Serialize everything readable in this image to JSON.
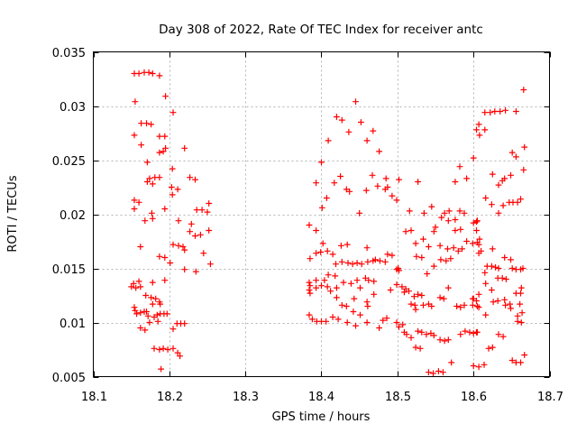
{
  "chart": {
    "background_color": "#ffffff",
    "border_color": "#000000",
    "grid_color": "#b4b4b4",
    "text_color": "#000000"
  },
  "chart_data": {
    "type": "scatter",
    "title": "Day 308 of 2022, Rate Of TEC Index for receiver antc",
    "xlabel": "GPS time / hours",
    "ylabel": "ROTI / TECUs",
    "xlim": [
      18.1,
      18.7
    ],
    "ylim": [
      0.005,
      0.035
    ],
    "x_ticks": [
      18.1,
      18.2,
      18.3,
      18.4,
      18.5,
      18.6,
      18.7
    ],
    "x_tick_labels": [
      "18.1",
      "18.2",
      "18.3",
      "18.4",
      "18.5",
      "18.6",
      "18.7"
    ],
    "y_ticks": [
      0.005,
      0.01,
      0.015,
      0.02,
      0.025,
      0.03,
      0.035
    ],
    "y_tick_labels": [
      "0.005",
      "0.01",
      "0.015",
      "0.02",
      "0.025",
      "0.03",
      "0.035"
    ],
    "grid": true,
    "legend": null,
    "marker": "plus",
    "marker_color": "#ff0000",
    "series_name": "ROTI",
    "points": [
      [
        18.154,
        0.033
      ],
      [
        18.16,
        0.033
      ],
      [
        18.167,
        0.0331
      ],
      [
        18.173,
        0.0331
      ],
      [
        18.178,
        0.033
      ],
      [
        18.187,
        0.0328
      ],
      [
        18.195,
        0.0309
      ],
      [
        18.155,
        0.0304
      ],
      [
        18.205,
        0.0294
      ],
      [
        18.163,
        0.0284
      ],
      [
        18.17,
        0.0284
      ],
      [
        18.176,
        0.0283
      ],
      [
        18.154,
        0.0273
      ],
      [
        18.187,
        0.0272
      ],
      [
        18.194,
        0.0272
      ],
      [
        18.163,
        0.0264
      ],
      [
        18.195,
        0.0261
      ],
      [
        18.22,
        0.0261
      ],
      [
        18.187,
        0.0257
      ],
      [
        18.192,
        0.0258
      ],
      [
        18.171,
        0.0248
      ],
      [
        18.204,
        0.0242
      ],
      [
        18.174,
        0.0233
      ],
      [
        18.181,
        0.0234
      ],
      [
        18.187,
        0.0234
      ],
      [
        18.171,
        0.023
      ],
      [
        18.178,
        0.0228
      ],
      [
        18.227,
        0.0234
      ],
      [
        18.234,
        0.0232
      ],
      [
        18.203,
        0.0225
      ],
      [
        18.211,
        0.0223
      ],
      [
        18.204,
        0.0218
      ],
      [
        18.154,
        0.0213
      ],
      [
        18.16,
        0.0211
      ],
      [
        18.154,
        0.0205
      ],
      [
        18.177,
        0.0201
      ],
      [
        18.194,
        0.0205
      ],
      [
        18.236,
        0.0204
      ],
      [
        18.243,
        0.0204
      ],
      [
        18.25,
        0.0202
      ],
      [
        18.252,
        0.021
      ],
      [
        18.168,
        0.0194
      ],
      [
        18.178,
        0.0196
      ],
      [
        18.212,
        0.0194
      ],
      [
        18.229,
        0.0191
      ],
      [
        18.227,
        0.0184
      ],
      [
        18.234,
        0.018
      ],
      [
        18.241,
        0.0181
      ],
      [
        18.252,
        0.0185
      ],
      [
        18.162,
        0.017
      ],
      [
        18.205,
        0.0172
      ],
      [
        18.212,
        0.0171
      ],
      [
        18.218,
        0.017
      ],
      [
        18.22,
        0.0167
      ],
      [
        18.187,
        0.0161
      ],
      [
        18.194,
        0.016
      ],
      [
        18.201,
        0.0155
      ],
      [
        18.245,
        0.0164
      ],
      [
        18.22,
        0.0149
      ],
      [
        18.235,
        0.0147
      ],
      [
        18.254,
        0.0154
      ],
      [
        18.153,
        0.0136
      ],
      [
        18.16,
        0.0138
      ],
      [
        18.178,
        0.0137
      ],
      [
        18.194,
        0.0139
      ],
      [
        18.15,
        0.0133
      ],
      [
        18.156,
        0.0132
      ],
      [
        18.162,
        0.0133
      ],
      [
        18.169,
        0.0125
      ],
      [
        18.176,
        0.0123
      ],
      [
        18.182,
        0.0122
      ],
      [
        18.187,
        0.0119
      ],
      [
        18.188,
        0.0117
      ],
      [
        18.178,
        0.0117
      ],
      [
        18.154,
        0.0114
      ],
      [
        18.155,
        0.0111
      ],
      [
        18.157,
        0.0108
      ],
      [
        18.162,
        0.0109
      ],
      [
        18.167,
        0.011
      ],
      [
        18.172,
        0.0106
      ],
      [
        18.17,
        0.011
      ],
      [
        18.18,
        0.0105
      ],
      [
        18.184,
        0.0107
      ],
      [
        18.188,
        0.0108
      ],
      [
        18.193,
        0.0108
      ],
      [
        18.197,
        0.0108
      ],
      [
        18.162,
        0.0095
      ],
      [
        18.168,
        0.0093
      ],
      [
        18.174,
        0.01
      ],
      [
        18.185,
        0.0101
      ],
      [
        18.21,
        0.0099
      ],
      [
        18.215,
        0.0099
      ],
      [
        18.22,
        0.0099
      ],
      [
        18.205,
        0.0094
      ],
      [
        18.18,
        0.0076
      ],
      [
        18.187,
        0.0075
      ],
      [
        18.192,
        0.0076
      ],
      [
        18.198,
        0.0075
      ],
      [
        18.205,
        0.0076
      ],
      [
        18.211,
        0.0072
      ],
      [
        18.214,
        0.0069
      ],
      [
        18.189,
        0.0057
      ],
      [
        18.445,
        0.0304
      ],
      [
        18.42,
        0.029
      ],
      [
        18.427,
        0.0287
      ],
      [
        18.452,
        0.0285
      ],
      [
        18.468,
        0.0277
      ],
      [
        18.436,
        0.0276
      ],
      [
        18.409,
        0.0268
      ],
      [
        18.46,
        0.0268
      ],
      [
        18.4,
        0.0248
      ],
      [
        18.476,
        0.0258
      ],
      [
        18.393,
        0.0229
      ],
      [
        18.425,
        0.0235
      ],
      [
        18.417,
        0.0229
      ],
      [
        18.467,
        0.0236
      ],
      [
        18.433,
        0.0223
      ],
      [
        18.437,
        0.0221
      ],
      [
        18.459,
        0.0222
      ],
      [
        18.407,
        0.0215
      ],
      [
        18.401,
        0.0206
      ],
      [
        18.45,
        0.0201
      ],
      [
        18.485,
        0.0233
      ],
      [
        18.474,
        0.0226
      ],
      [
        18.484,
        0.0223
      ],
      [
        18.487,
        0.0225
      ],
      [
        18.582,
        0.0244
      ],
      [
        18.527,
        0.023
      ],
      [
        18.576,
        0.023
      ],
      [
        18.591,
        0.0233
      ],
      [
        18.502,
        0.0232
      ],
      [
        18.493,
        0.0217
      ],
      [
        18.499,
        0.0213
      ],
      [
        18.545,
        0.0207
      ],
      [
        18.516,
        0.0203
      ],
      [
        18.535,
        0.0201
      ],
      [
        18.562,
        0.0201
      ],
      [
        18.568,
        0.0203
      ],
      [
        18.582,
        0.0203
      ],
      [
        18.588,
        0.0201
      ],
      [
        18.6,
        0.0252
      ],
      [
        18.384,
        0.019
      ],
      [
        18.393,
        0.0185
      ],
      [
        18.402,
        0.0173
      ],
      [
        18.399,
        0.0165
      ],
      [
        18.408,
        0.0166
      ],
      [
        18.393,
        0.0164
      ],
      [
        18.415,
        0.0163
      ],
      [
        18.385,
        0.0159
      ],
      [
        18.426,
        0.0171
      ],
      [
        18.434,
        0.0172
      ],
      [
        18.46,
        0.0169
      ],
      [
        18.419,
        0.0154
      ],
      [
        18.427,
        0.0156
      ],
      [
        18.435,
        0.0155
      ],
      [
        18.441,
        0.0154
      ],
      [
        18.447,
        0.0155
      ],
      [
        18.453,
        0.0154
      ],
      [
        18.461,
        0.0156
      ],
      [
        18.468,
        0.0157
      ],
      [
        18.409,
        0.0144
      ],
      [
        18.418,
        0.0143
      ],
      [
        18.404,
        0.0139
      ],
      [
        18.393,
        0.0139
      ],
      [
        18.384,
        0.0137
      ],
      [
        18.385,
        0.0134
      ],
      [
        18.384,
        0.013
      ],
      [
        18.385,
        0.0127
      ],
      [
        18.393,
        0.0132
      ],
      [
        18.4,
        0.0134
      ],
      [
        18.408,
        0.0133
      ],
      [
        18.412,
        0.0129
      ],
      [
        18.42,
        0.0132
      ],
      [
        18.42,
        0.0123
      ],
      [
        18.429,
        0.0137
      ],
      [
        18.439,
        0.0136
      ],
      [
        18.447,
        0.0139
      ],
      [
        18.458,
        0.0141
      ],
      [
        18.462,
        0.0139
      ],
      [
        18.469,
        0.0138
      ],
      [
        18.451,
        0.0132
      ],
      [
        18.443,
        0.0122
      ],
      [
        18.427,
        0.0116
      ],
      [
        18.433,
        0.0115
      ],
      [
        18.442,
        0.011
      ],
      [
        18.451,
        0.0107
      ],
      [
        18.46,
        0.0119
      ],
      [
        18.461,
        0.0115
      ],
      [
        18.469,
        0.0126
      ],
      [
        18.384,
        0.0107
      ],
      [
        18.388,
        0.0103
      ],
      [
        18.394,
        0.0101
      ],
      [
        18.4,
        0.0101
      ],
      [
        18.406,
        0.0101
      ],
      [
        18.415,
        0.0105
      ],
      [
        18.422,
        0.0103
      ],
      [
        18.434,
        0.01
      ],
      [
        18.445,
        0.0097
      ],
      [
        18.46,
        0.01
      ],
      [
        18.558,
        0.0197
      ],
      [
        18.567,
        0.0194
      ],
      [
        18.576,
        0.0195
      ],
      [
        18.6,
        0.0192
      ],
      [
        18.605,
        0.0194
      ],
      [
        18.511,
        0.0184
      ],
      [
        18.518,
        0.0185
      ],
      [
        18.548,
        0.0184
      ],
      [
        18.55,
        0.0188
      ],
      [
        18.576,
        0.0185
      ],
      [
        18.583,
        0.0186
      ],
      [
        18.591,
        0.0175
      ],
      [
        18.599,
        0.0173
      ],
      [
        18.605,
        0.0174
      ],
      [
        18.524,
        0.0173
      ],
      [
        18.534,
        0.0177
      ],
      [
        18.541,
        0.017
      ],
      [
        18.556,
        0.0171
      ],
      [
        18.566,
        0.0168
      ],
      [
        18.574,
        0.0169
      ],
      [
        18.58,
        0.0166
      ],
      [
        18.585,
        0.0168
      ],
      [
        18.607,
        0.0164
      ],
      [
        18.61,
        0.0166
      ],
      [
        18.487,
        0.0163
      ],
      [
        18.493,
        0.0162
      ],
      [
        18.471,
        0.0158
      ],
      [
        18.477,
        0.0157
      ],
      [
        18.484,
        0.0156
      ],
      [
        18.525,
        0.0161
      ],
      [
        18.532,
        0.016
      ],
      [
        18.557,
        0.0158
      ],
      [
        18.564,
        0.0157
      ],
      [
        18.57,
        0.0159
      ],
      [
        18.548,
        0.0152
      ],
      [
        18.501,
        0.015
      ],
      [
        18.499,
        0.0149
      ],
      [
        18.502,
        0.0148
      ],
      [
        18.539,
        0.0145
      ],
      [
        18.567,
        0.0132
      ],
      [
        18.506,
        0.0133
      ],
      [
        18.511,
        0.0131
      ],
      [
        18.509,
        0.0128
      ],
      [
        18.515,
        0.0129
      ],
      [
        18.491,
        0.013
      ],
      [
        18.499,
        0.0135
      ],
      [
        18.522,
        0.0124
      ],
      [
        18.527,
        0.0126
      ],
      [
        18.532,
        0.0125
      ],
      [
        18.534,
        0.0116
      ],
      [
        18.541,
        0.0117
      ],
      [
        18.545,
        0.0115
      ],
      [
        18.518,
        0.0117
      ],
      [
        18.523,
        0.0116
      ],
      [
        18.524,
        0.0112
      ],
      [
        18.556,
        0.0123
      ],
      [
        18.561,
        0.0122
      ],
      [
        18.578,
        0.0115
      ],
      [
        18.583,
        0.0114
      ],
      [
        18.588,
        0.0116
      ],
      [
        18.599,
        0.0122
      ],
      [
        18.604,
        0.012
      ],
      [
        18.599,
        0.0116
      ],
      [
        18.605,
        0.0115
      ],
      [
        18.486,
        0.0104
      ],
      [
        18.481,
        0.0102
      ],
      [
        18.499,
        0.01
      ],
      [
        18.502,
        0.0096
      ],
      [
        18.507,
        0.0098
      ],
      [
        18.476,
        0.0095
      ],
      [
        18.509,
        0.0091
      ],
      [
        18.512,
        0.0089
      ],
      [
        18.527,
        0.0092
      ],
      [
        18.532,
        0.0091
      ],
      [
        18.518,
        0.0086
      ],
      [
        18.524,
        0.0077
      ],
      [
        18.53,
        0.0076
      ],
      [
        18.538,
        0.0089
      ],
      [
        18.544,
        0.009
      ],
      [
        18.548,
        0.0088
      ],
      [
        18.556,
        0.0084
      ],
      [
        18.562,
        0.0083
      ],
      [
        18.567,
        0.0084
      ],
      [
        18.583,
        0.0089
      ],
      [
        18.589,
        0.0092
      ],
      [
        18.595,
        0.0091
      ],
      [
        18.6,
        0.009
      ],
      [
        18.605,
        0.0091
      ],
      [
        18.571,
        0.0063
      ],
      [
        18.541,
        0.0054
      ],
      [
        18.547,
        0.0053
      ],
      [
        18.554,
        0.0055
      ],
      [
        18.56,
        0.0054
      ],
      [
        18.6,
        0.006
      ],
      [
        18.607,
        0.0059
      ],
      [
        18.614,
        0.0061
      ],
      [
        18.666,
        0.0315
      ],
      [
        18.615,
        0.0294
      ],
      [
        18.622,
        0.0294
      ],
      [
        18.628,
        0.0295
      ],
      [
        18.635,
        0.0295
      ],
      [
        18.642,
        0.0296
      ],
      [
        18.656,
        0.0295
      ],
      [
        18.607,
        0.0283
      ],
      [
        18.604,
        0.0278
      ],
      [
        18.615,
        0.0278
      ],
      [
        18.608,
        0.0273
      ],
      [
        18.667,
        0.0262
      ],
      [
        18.651,
        0.0257
      ],
      [
        18.656,
        0.0253
      ],
      [
        18.666,
        0.0241
      ],
      [
        18.625,
        0.0237
      ],
      [
        18.649,
        0.0236
      ],
      [
        18.641,
        0.0233
      ],
      [
        18.638,
        0.0231
      ],
      [
        18.633,
        0.0227
      ],
      [
        18.616,
        0.0215
      ],
      [
        18.624,
        0.0209
      ],
      [
        18.639,
        0.0208
      ],
      [
        18.647,
        0.0211
      ],
      [
        18.652,
        0.0211
      ],
      [
        18.658,
        0.0211
      ],
      [
        18.662,
        0.0214
      ],
      [
        18.633,
        0.0201
      ],
      [
        18.604,
        0.0193
      ],
      [
        18.604,
        0.0185
      ],
      [
        18.608,
        0.0177
      ],
      [
        18.625,
        0.0168
      ],
      [
        18.607,
        0.0172
      ],
      [
        18.641,
        0.016
      ],
      [
        18.649,
        0.0158
      ],
      [
        18.618,
        0.0152
      ],
      [
        18.624,
        0.0152
      ],
      [
        18.629,
        0.0151
      ],
      [
        18.633,
        0.015
      ],
      [
        18.651,
        0.015
      ],
      [
        18.656,
        0.0149
      ],
      [
        18.662,
        0.0149
      ],
      [
        18.665,
        0.015
      ],
      [
        18.615,
        0.0146
      ],
      [
        18.632,
        0.0141
      ],
      [
        18.638,
        0.0141
      ],
      [
        18.616,
        0.0136
      ],
      [
        18.643,
        0.014
      ],
      [
        18.624,
        0.013
      ],
      [
        18.656,
        0.0127
      ],
      [
        18.662,
        0.0127
      ],
      [
        18.663,
        0.0132
      ],
      [
        18.607,
        0.0126
      ],
      [
        18.6,
        0.0122
      ],
      [
        18.626,
        0.0119
      ],
      [
        18.632,
        0.012
      ],
      [
        18.641,
        0.0121
      ],
      [
        18.642,
        0.0116
      ],
      [
        18.648,
        0.0117
      ],
      [
        18.649,
        0.0113
      ],
      [
        18.607,
        0.0114
      ],
      [
        18.661,
        0.0117
      ],
      [
        18.616,
        0.0107
      ],
      [
        18.658,
        0.0106
      ],
      [
        18.664,
        0.0109
      ],
      [
        18.658,
        0.0101
      ],
      [
        18.663,
        0.01
      ],
      [
        18.604,
        0.0091
      ],
      [
        18.633,
        0.0089
      ],
      [
        18.639,
        0.0087
      ],
      [
        18.62,
        0.0076
      ],
      [
        18.625,
        0.0077
      ],
      [
        18.651,
        0.0065
      ],
      [
        18.656,
        0.0063
      ],
      [
        18.662,
        0.0063
      ],
      [
        18.667,
        0.007
      ]
    ]
  }
}
